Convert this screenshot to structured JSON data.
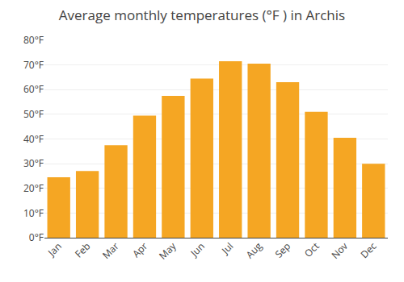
{
  "chart_data": {
    "type": "bar",
    "title": "Average monthly temperatures (°F ) in Archis",
    "categories": [
      "Jan",
      "Feb",
      "Mar",
      "Apr",
      "May",
      "Jun",
      "Jul",
      "Aug",
      "Sep",
      "Oct",
      "Nov",
      "Dec"
    ],
    "values": [
      24.5,
      27.0,
      37.5,
      49.5,
      57.5,
      64.5,
      71.5,
      70.5,
      63.0,
      51.0,
      40.5,
      30.0
    ],
    "color": "#F5A623",
    "ylim": [
      0,
      80
    ],
    "yticks": [
      {
        "value": 0,
        "label": "0°F"
      },
      {
        "value": 10,
        "label": "10°F"
      },
      {
        "value": 20,
        "label": "20°F"
      },
      {
        "value": 30,
        "label": "30°F"
      },
      {
        "value": 40,
        "label": "40°F"
      },
      {
        "value": 50,
        "label": "50°F"
      },
      {
        "value": 60,
        "label": "60°F"
      },
      {
        "value": 70,
        "label": "70°F"
      },
      {
        "value": 80,
        "label": "80°F"
      }
    ],
    "grid": true
  }
}
